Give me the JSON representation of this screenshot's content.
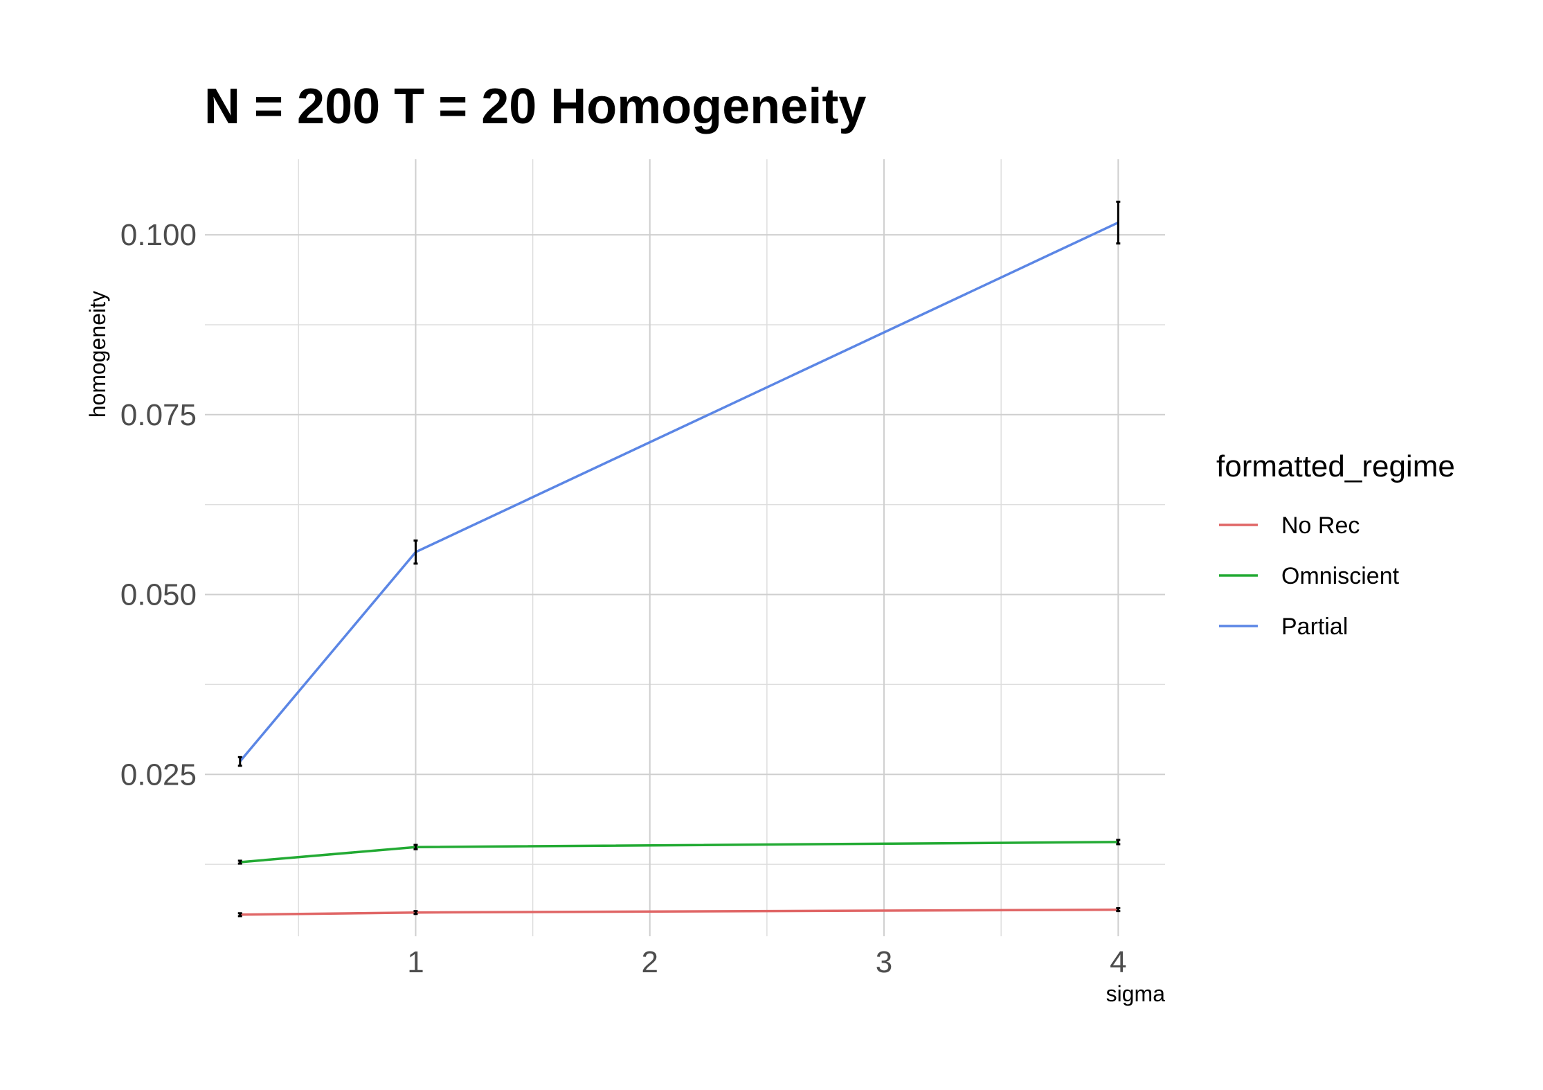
{
  "chart_data": {
    "type": "line",
    "title": "N = 200 T = 20 Homogeneity",
    "xlabel": "sigma",
    "ylabel": "homogeneity",
    "xlim": [
      0.1,
      4.2
    ],
    "ylim": [
      0.0025,
      0.1105
    ],
    "x_ticks": [
      1,
      2,
      3,
      4
    ],
    "x_tick_labels": [
      "1",
      "2",
      "3",
      "4"
    ],
    "x_minor": [
      0.5,
      1.5,
      2.5,
      3.5
    ],
    "y_ticks": [
      0.025,
      0.05,
      0.075,
      0.1
    ],
    "y_tick_labels": [
      "0.025",
      "0.050",
      "0.075",
      "0.100"
    ],
    "y_minor": [
      0.0125,
      0.0375,
      0.0625,
      0.0875
    ],
    "grid": true,
    "legend_title": "formatted_regime",
    "legend_position": "right",
    "series": [
      {
        "name": "No Rec",
        "color": "#e06666",
        "x": [
          0.25,
          1,
          4
        ],
        "y": [
          0.0055,
          0.0058,
          0.0062
        ],
        "err": [
          0.0002,
          0.0002,
          0.0002
        ]
      },
      {
        "name": "Omniscient",
        "color": "#22aa33",
        "x": [
          0.25,
          1,
          4
        ],
        "y": [
          0.0128,
          0.0149,
          0.0156
        ],
        "err": [
          0.0002,
          0.0003,
          0.0003
        ]
      },
      {
        "name": "Partial",
        "color": "#5b86e5",
        "x": [
          0.25,
          1,
          4
        ],
        "y": [
          0.0268,
          0.0559,
          0.1017
        ],
        "err": [
          0.0006,
          0.0016,
          0.0029
        ]
      }
    ]
  }
}
